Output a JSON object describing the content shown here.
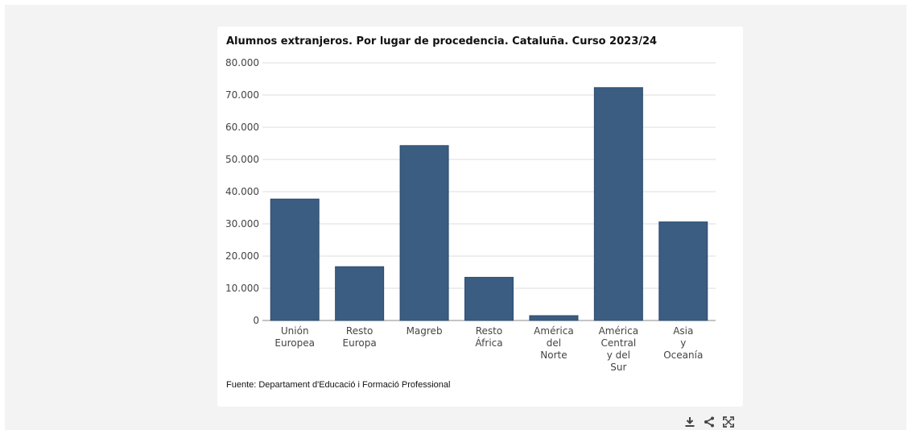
{
  "chart_data": {
    "type": "bar",
    "title": "Alumnos extranjeros. Por lugar de procedencia. Cataluña. Curso 2023/24",
    "categories": [
      [
        "Unión",
        "Europea"
      ],
      [
        "Resto",
        "Europa"
      ],
      [
        "Magreb"
      ],
      [
        "Resto",
        "África"
      ],
      [
        "América",
        "del",
        "Norte"
      ],
      [
        "América",
        "Central",
        "y del",
        "Sur"
      ],
      [
        "Asia",
        "y",
        "Oceanía"
      ]
    ],
    "values": [
      37700,
      16700,
      54300,
      13400,
      1500,
      72300,
      30600
    ],
    "ylim": [
      0,
      80000
    ],
    "yticks": [
      0,
      10000,
      20000,
      30000,
      40000,
      50000,
      60000,
      70000,
      80000
    ],
    "ytick_labels": [
      "0",
      "10.000",
      "20.000",
      "30.000",
      "40.000",
      "50.000",
      "60.000",
      "70.000",
      "80.000"
    ],
    "bar_color": "#3b5d82",
    "grid": true,
    "xlabel": "",
    "ylabel": ""
  },
  "source": "Fuente: Departament d'Educació i Formació Professional",
  "toolbar": {
    "icons": [
      "download-icon",
      "share-icon",
      "fullscreen-icon"
    ]
  }
}
